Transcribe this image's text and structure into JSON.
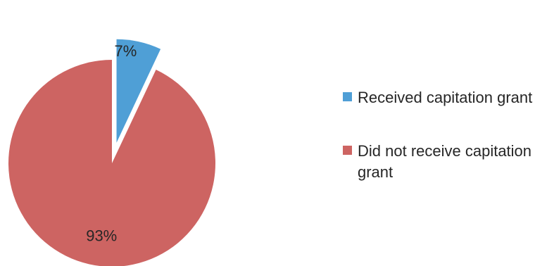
{
  "chart_data": {
    "type": "pie",
    "slices": [
      {
        "label": "Received capitation grant",
        "value": 7,
        "data_label": "7%",
        "color": "#4f9fd6",
        "exploded": true
      },
      {
        "label": "Did not receive capitation grant",
        "value": 93,
        "data_label": "93%",
        "color": "#cd6462",
        "exploded": false
      }
    ],
    "legend_position": "right",
    "start_angle": "12 o'clock",
    "direction": "clockwise"
  }
}
